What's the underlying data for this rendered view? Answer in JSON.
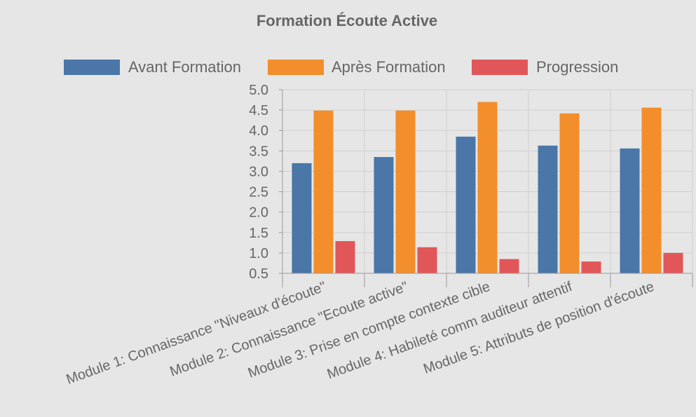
{
  "chart_data": {
    "type": "bar",
    "title": "Formation Écoute Active",
    "categories": [
      "Module 1: Connaissance \"Niveaux d'écoute\"",
      "Module 2: Connaissance \"Ecoute active\"",
      "Module 3: Prise en compte contexte cible",
      "Module 4: Habileté comm auditeur attentif",
      "Module 5: Attributs de position d'écoute"
    ],
    "series": [
      {
        "name": "Avant Formation",
        "color": "#4a76a8",
        "values": [
          3.2,
          3.35,
          3.85,
          3.63,
          3.56
        ]
      },
      {
        "name": "Après Formation",
        "color": "#f28e2c",
        "values": [
          4.49,
          4.49,
          4.7,
          4.42,
          4.56
        ]
      },
      {
        "name": "Progression",
        "color": "#e15759",
        "values": [
          1.29,
          1.14,
          0.85,
          0.79,
          1.0
        ]
      }
    ],
    "ylim": [
      0.5,
      5.0
    ],
    "yticks": [
      "0.5",
      "1.0",
      "1.5",
      "2.0",
      "2.5",
      "3.0",
      "3.5",
      "4.0",
      "4.5",
      "5.0"
    ],
    "xlabel": "",
    "ylabel": "",
    "grid": true,
    "legend_position": "top"
  }
}
